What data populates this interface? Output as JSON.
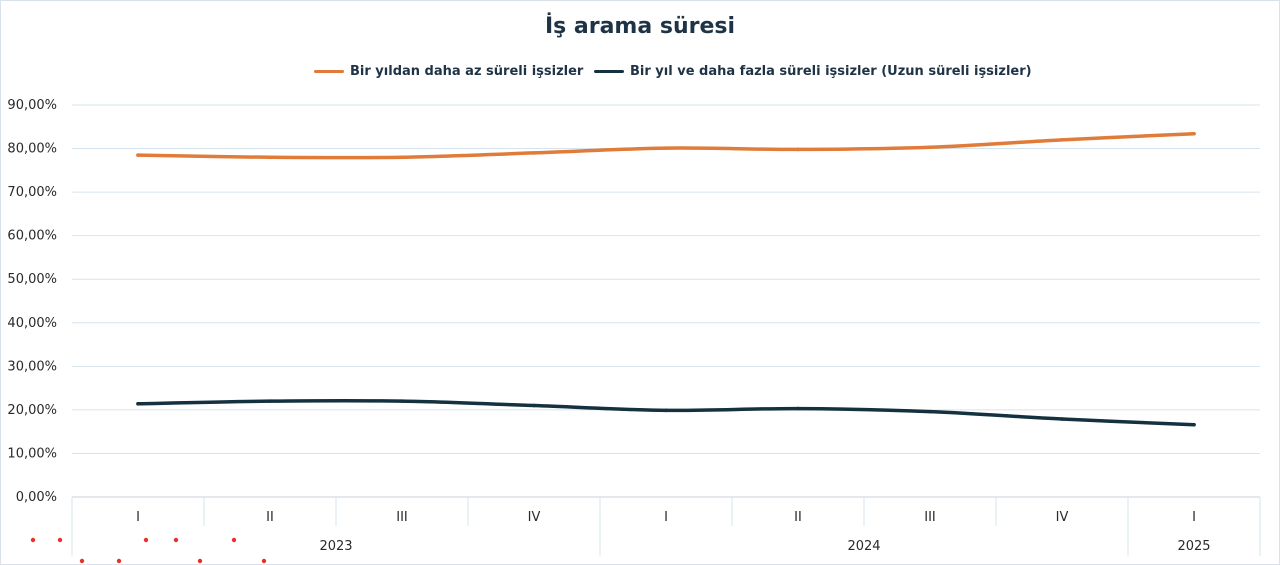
{
  "chart_data": {
    "type": "line",
    "title": "İş arama süresi",
    "categories": [
      "I",
      "II",
      "III",
      "IV",
      "I",
      "II",
      "III",
      "IV",
      "I"
    ],
    "groups": [
      {
        "label": "2023",
        "span": 4
      },
      {
        "label": "2024",
        "span": 4
      },
      {
        "label": "2025",
        "span": 1
      }
    ],
    "series": [
      {
        "name": "Bir yıldan daha az süreli işsizler",
        "color": "#e07b39",
        "values": [
          78.5,
          78.0,
          78.0,
          79.0,
          80.1,
          79.8,
          80.3,
          82.0,
          83.4
        ]
      },
      {
        "name": "Bir yıl ve daha fazla süreli işsizler (Uzun süreli işsizler)",
        "color": "#14313f",
        "values": [
          21.4,
          22.0,
          22.0,
          21.0,
          19.9,
          20.3,
          19.6,
          17.9,
          16.6
        ]
      }
    ],
    "yticks": [
      "0,00%",
      "10,00%",
      "20,00%",
      "30,00%",
      "40,00%",
      "50,00%",
      "60,00%",
      "70,00%",
      "80,00%",
      "90,00%"
    ],
    "ylim": [
      0,
      90
    ],
    "grid": true,
    "legend_position": "top"
  }
}
